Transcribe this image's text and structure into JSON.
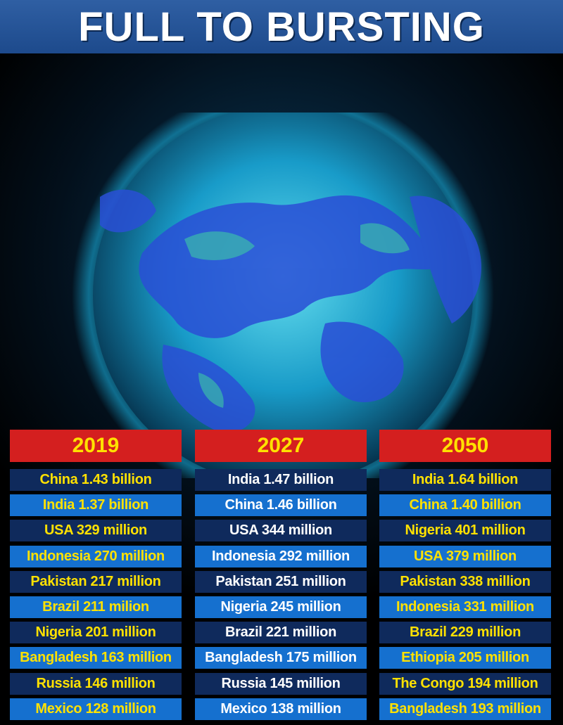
{
  "title": "FULL TO BURSTING",
  "colors": {
    "title_bar": "#2358a0",
    "year_header": "#d41f1f",
    "year_text": "#ffe100",
    "row_dark": "#0f2a5c",
    "row_light": "#1570cf",
    "text_yellow": "#ffe100",
    "text_white": "#ffffff"
  },
  "columns": [
    {
      "year": "2019",
      "rows": [
        "China 1.43 billion",
        "India 1.37 billion",
        "USA 329 million",
        "Indonesia 270 million",
        "Pakistan 217 million",
        "Brazil 211 milion",
        "Nigeria 201 million",
        "Bangladesh 163 million",
        "Russia 146 million",
        "Mexico 128 million"
      ]
    },
    {
      "year": "2027",
      "rows": [
        "India 1.47 billion",
        "China 1.46 billion",
        "USA 344 million",
        "Indonesia 292 million",
        "Pakistan 251 million",
        "Nigeria 245 million",
        "Brazil 221 million",
        "Bangladesh 175 million",
        "Russia 145 million",
        "Mexico 138 million"
      ]
    },
    {
      "year": "2050",
      "rows": [
        "India 1.64 billion",
        "China 1.40 billion",
        "Nigeria 401 million",
        "USA 379 million",
        "Pakistan 338 million",
        "Indonesia 331 million",
        "Brazil 229 million",
        "Ethiopia 205 million",
        "The Congo 194 million",
        "Bangladesh 193 million"
      ]
    }
  ]
}
